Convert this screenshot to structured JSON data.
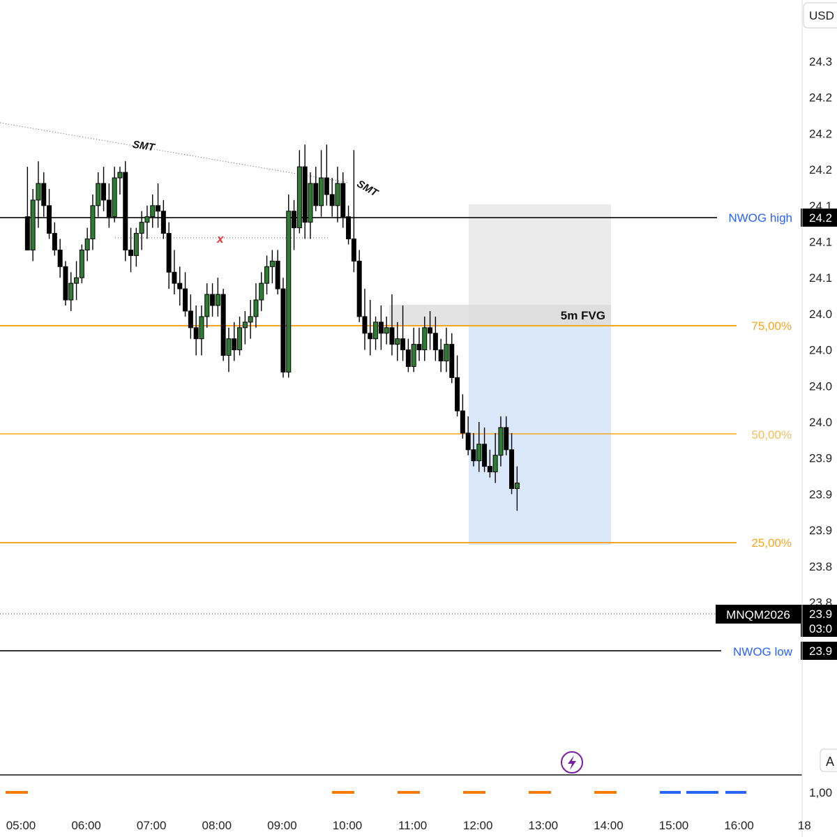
{
  "currency": "USD",
  "symbol": "MNQM2026",
  "last_price_label": "23.9",
  "countdown": "03:0",
  "auto_button": "A",
  "lightning_icon": "lightning-icon",
  "bottom_scale_label": "1,00",
  "colors": {
    "bull": "#2e7d32",
    "bear": "#000000",
    "fib": "#f5a623",
    "fvg_fill": "#d9d9d9",
    "target_fill": "#dbe8fc",
    "nwog": "#333333",
    "label_blue": "#2962ff",
    "annot_red": "#e53935",
    "event_orange": "#f57c00",
    "event_blue": "#2962ff",
    "lightning": "#7b1fa2"
  },
  "annotations": {
    "smt_1": "SMT",
    "smt_2": "SMT",
    "x_mark": "x",
    "fvg_label": "5m FVG"
  },
  "levels": {
    "nwog_high": {
      "label": "NWOG high",
      "price_label": "24.2"
    },
    "nwog_low": {
      "label": "NWOG low",
      "price_label": "23.9"
    },
    "fib_75": "75,00%",
    "fib_50": "50,00%",
    "fib_25": "25,00%"
  },
  "chart_data": {
    "type": "candlestick",
    "price_axis_labels": [
      "24.3",
      "24.2",
      "24.2",
      "24.2",
      "24.1",
      "24.1",
      "24.1",
      "24.0",
      "24.0",
      "24.0",
      "24.0",
      "23.9",
      "23.9",
      "23.9",
      "23.8",
      "23.8"
    ],
    "time_axis_labels": [
      "05:00",
      "06:00",
      "07:00",
      "08:00",
      "09:00",
      "10:00",
      "11:00",
      "12:00",
      "13:00",
      "14:00",
      "15:00",
      "16:00",
      "18"
    ],
    "y_scale": {
      "price_top": 24310,
      "price_bottom": 23820,
      "tick_step": 32.5
    },
    "x_scale": {
      "hour_start": 5,
      "interval_minutes": 5
    },
    "candles": [
      [
        24170,
        24215,
        24140,
        24140
      ],
      [
        24140,
        24195,
        24130,
        24185
      ],
      [
        24185,
        24220,
        24160,
        24200
      ],
      [
        24200,
        24210,
        24170,
        24180
      ],
      [
        24180,
        24195,
        24150,
        24155
      ],
      [
        24155,
        24165,
        24135,
        24140
      ],
      [
        24140,
        24150,
        24115,
        24125
      ],
      [
        24125,
        24130,
        24090,
        24095
      ],
      [
        24095,
        24120,
        24085,
        24110
      ],
      [
        24110,
        24130,
        24095,
        24115
      ],
      [
        24115,
        24145,
        24110,
        24140
      ],
      [
        24140,
        24160,
        24130,
        24150
      ],
      [
        24150,
        24190,
        24140,
        24180
      ],
      [
        24180,
        24210,
        24170,
        24200
      ],
      [
        24200,
        24215,
        24175,
        24185
      ],
      [
        24185,
        24200,
        24160,
        24170
      ],
      [
        24170,
        24215,
        24165,
        24205
      ],
      [
        24205,
        24215,
        24190,
        24210
      ],
      [
        24210,
        24220,
        24130,
        24140
      ],
      [
        24140,
        24160,
        24120,
        24135
      ],
      [
        24135,
        24160,
        24125,
        24155
      ],
      [
        24155,
        24175,
        24140,
        24165
      ],
      [
        24165,
        24180,
        24150,
        24170
      ],
      [
        24170,
        24190,
        24160,
        24180
      ],
      [
        24180,
        24200,
        24160,
        24175
      ],
      [
        24175,
        24185,
        24150,
        24155
      ],
      [
        24155,
        24165,
        24105,
        24120
      ],
      [
        24120,
        24140,
        24100,
        24110
      ],
      [
        24110,
        24125,
        24090,
        24105
      ],
      [
        24105,
        24120,
        24080,
        24085
      ],
      [
        24085,
        24100,
        24060,
        24070
      ],
      [
        24070,
        24090,
        24045,
        24060
      ],
      [
        24060,
        24090,
        24045,
        24080
      ],
      [
        24080,
        24110,
        24070,
        24100
      ],
      [
        24100,
        24110,
        24080,
        24090
      ],
      [
        24090,
        24115,
        24080,
        24100
      ],
      [
        24100,
        24105,
        24040,
        24045
      ],
      [
        24045,
        24070,
        24030,
        24060
      ],
      [
        24060,
        24075,
        24040,
        24050
      ],
      [
        24050,
        24080,
        24045,
        24070
      ],
      [
        24070,
        24085,
        24055,
        24075
      ],
      [
        24075,
        24095,
        24060,
        24080
      ],
      [
        24080,
        24110,
        24070,
        24095
      ],
      [
        24095,
        24120,
        24085,
        24110
      ],
      [
        24110,
        24135,
        24100,
        24125
      ],
      [
        24125,
        24140,
        24110,
        24130
      ],
      [
        24130,
        24140,
        24100,
        24105
      ],
      [
        24105,
        24115,
        24025,
        24030
      ],
      [
        24030,
        24190,
        24025,
        24175
      ],
      [
        24175,
        24185,
        24140,
        24160
      ],
      [
        24160,
        24230,
        24155,
        24215
      ],
      [
        24215,
        24235,
        24150,
        24165
      ],
      [
        24165,
        24210,
        24150,
        24200
      ],
      [
        24200,
        24215,
        24175,
        24180
      ],
      [
        24180,
        24230,
        24170,
        24205
      ],
      [
        24205,
        24235,
        24180,
        24190
      ],
      [
        24190,
        24205,
        24170,
        24180
      ],
      [
        24180,
        24215,
        24165,
        24200
      ],
      [
        24200,
        24210,
        24160,
        24170
      ],
      [
        24170,
        24180,
        24145,
        24150
      ],
      [
        24150,
        24230,
        24120,
        24130
      ],
      [
        24130,
        24140,
        24075,
        24080
      ],
      [
        24080,
        24105,
        24050,
        24065
      ],
      [
        24065,
        24095,
        24045,
        24060
      ],
      [
        24060,
        24080,
        24050,
        24075
      ],
      [
        24075,
        24090,
        24050,
        24065
      ],
      [
        24065,
        24080,
        24055,
        24070
      ],
      [
        24070,
        24100,
        24045,
        24055
      ],
      [
        24055,
        24075,
        24040,
        24060
      ],
      [
        24060,
        24090,
        24040,
        24050
      ],
      [
        24050,
        24060,
        24030,
        24035
      ],
      [
        24035,
        24070,
        24030,
        24055
      ],
      [
        24055,
        24070,
        24040,
        24050
      ],
      [
        24050,
        24080,
        24040,
        24070
      ],
      [
        24070,
        24085,
        24050,
        24065
      ],
      [
        24065,
        24080,
        24040,
        24050
      ],
      [
        24050,
        24060,
        24030,
        24040
      ],
      [
        24040,
        24070,
        24030,
        24055
      ],
      [
        24055,
        24065,
        24020,
        24025
      ],
      [
        24025,
        24045,
        23990,
        23995
      ],
      [
        23995,
        24010,
        23970,
        23975
      ],
      [
        23975,
        23990,
        23955,
        23960
      ],
      [
        23960,
        23975,
        23945,
        23950
      ],
      [
        23950,
        23985,
        23940,
        23965
      ],
      [
        23965,
        23980,
        23940,
        23945
      ],
      [
        23945,
        23960,
        23935,
        23940
      ],
      [
        23940,
        23975,
        23930,
        23955
      ],
      [
        23955,
        23990,
        23945,
        23980
      ],
      [
        23980,
        23990,
        23955,
        23960
      ],
      [
        23960,
        23975,
        23920,
        23925
      ],
      [
        23925,
        23945,
        23905,
        23930
      ]
    ]
  }
}
